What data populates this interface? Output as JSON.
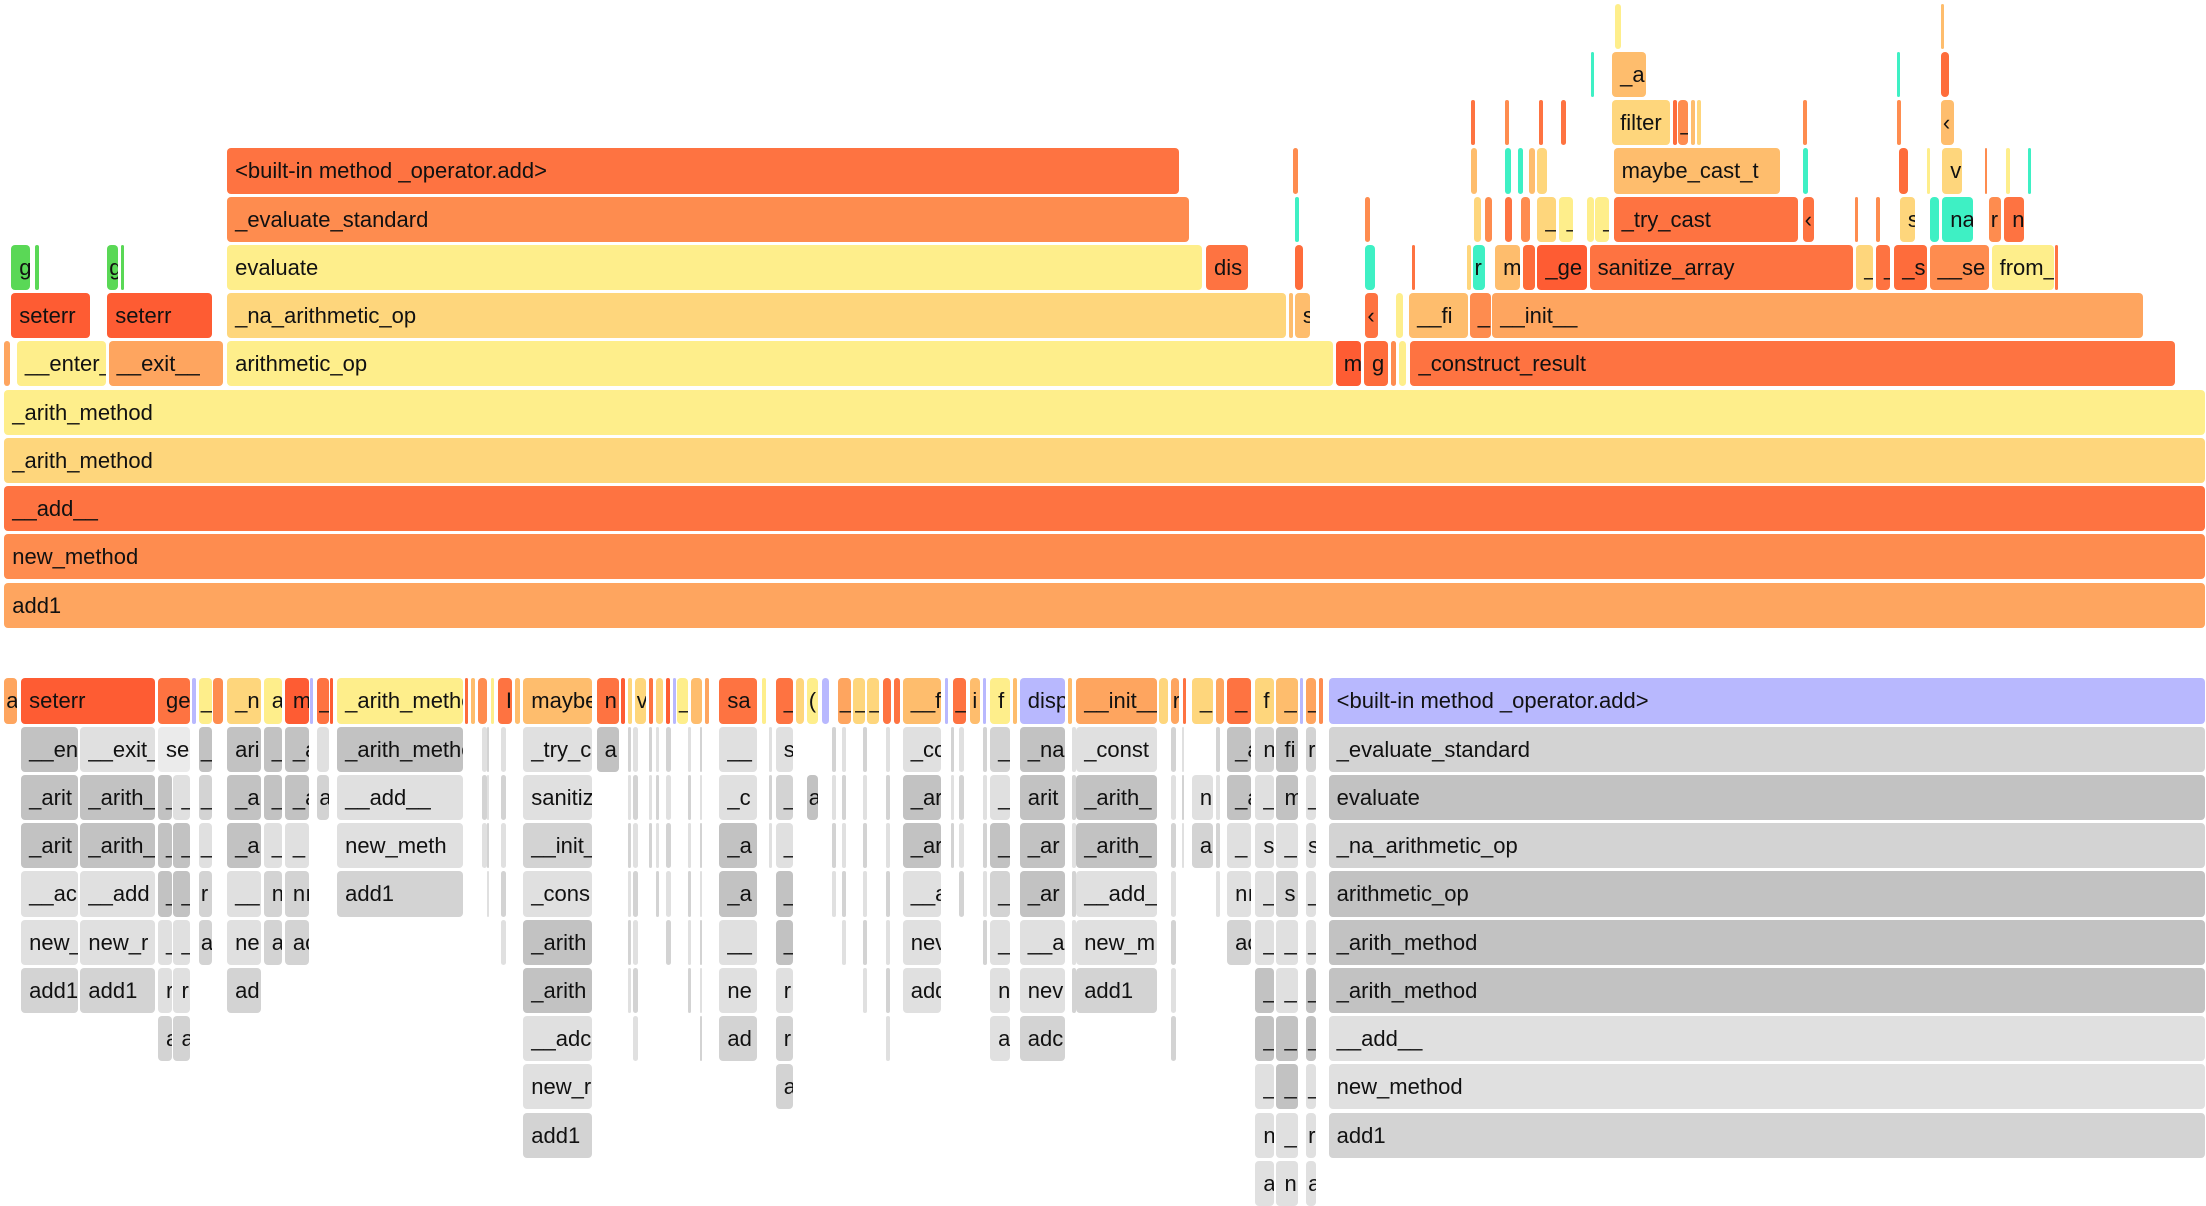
{
  "palette": {
    "Y1": "#feee8b",
    "Y2": "#fed67c",
    "O1": "#fea55f",
    "O2": "#fe8c4f",
    "O3": "#fe7341",
    "R": "#fe5c33",
    "R2": "#fe6c3b",
    "P": "#febd6d",
    "G": "#5ad856",
    "C": "#3ef0c4",
    "L": "#b8b8fe",
    "g1": "#e0e0e0",
    "g2": "#d3d3d3",
    "g3": "#c2c2c2",
    "g4": "#ebebeb"
  },
  "top_graph": {
    "labels": [
      "add1",
      "new_method",
      "__add__",
      "_arith_method",
      "_arith_method",
      "__enter__",
      "__exit__",
      "arithmetic_op",
      "m",
      "g",
      "_construct_result",
      "seterr",
      "seterr",
      "_na_arithmetic_op",
      "s",
      "‹",
      "__fi",
      "_",
      "__init__",
      "g",
      "g",
      "evaluate",
      "dis",
      "r",
      "m",
      "_ge",
      "sanitize_array",
      "_",
      "_",
      "_s",
      "__se",
      "from_",
      "_evaluate_standard",
      "_",
      "_",
      "_",
      "_try_cast",
      "‹",
      "s",
      "na",
      "r",
      "n",
      "<built-in method _operator.add>",
      "maybe_cast_t",
      "v",
      "filter",
      "_",
      "‹",
      "_a"
    ]
  },
  "bottom_graph": {
    "labels": [
      "a",
      "seterr",
      "ge",
      "_",
      "_n",
      "a",
      "m",
      "_",
      "_arith_method",
      "I",
      "maybe",
      "n",
      "v",
      "_",
      "sa",
      "_",
      "(",
      "_",
      "_",
      "_",
      "__f",
      "_",
      "i",
      "f",
      "disp",
      "__init__",
      "r",
      "_",
      "_",
      "f",
      "_",
      "_",
      "<built-in method _operator.add>",
      "__enter__",
      "__exit__",
      "se",
      "_",
      "ari",
      "_",
      "_a",
      "_arith_method",
      "_try_c",
      "a",
      "__",
      "s",
      "_co",
      "_",
      "_na",
      "_const",
      "_a",
      "n",
      "fi",
      "r",
      "_evaluate_standard",
      "_arit",
      "_arith_",
      "_",
      "_",
      "_",
      "_a",
      "_",
      "_a",
      "a",
      "__add__",
      "sanitiz",
      "_c",
      "_",
      "a",
      "_ar",
      "_",
      "arit",
      "_arith_",
      "n",
      "_a",
      "_",
      "m",
      "_",
      "evaluate",
      "_arit",
      "_arith_",
      "_",
      "_",
      "_",
      "_a",
      "_",
      "_",
      "new_meth",
      "__init_",
      "_a",
      "_",
      "_ar",
      "_",
      "_ar",
      "_arith_",
      "a",
      "_",
      "s",
      "_",
      "s",
      "_na_arithmetic_op",
      "__ac",
      "__add",
      "_",
      "_",
      "r",
      "__",
      "n",
      "nı",
      "add1",
      "_cons",
      "_a",
      "_",
      "__a",
      "_",
      "_ar",
      "__add_",
      "nı",
      "_",
      "s",
      "_",
      "arithmetic_op",
      "new_",
      "new_r",
      "_",
      "_",
      "a",
      "ne",
      "a",
      "ac",
      "_arith",
      "__",
      "_",
      "nev",
      "_",
      "__a",
      "new_m",
      "ac",
      "_",
      "_",
      "_",
      "_arith_method",
      "add1",
      "add1",
      "r",
      "r",
      "ad",
      "_arith",
      "ne",
      "r",
      "add",
      "n",
      "nev",
      "add1",
      "_",
      "_",
      "_",
      "_arith_method",
      "a",
      "a",
      "__adc",
      "ad",
      "r",
      "a",
      "adc",
      "_",
      "_",
      "_",
      "__add__",
      "new_r",
      "a",
      "_",
      "_",
      "_",
      "new_method",
      "add1",
      "n",
      "_",
      "r",
      "add1",
      "a",
      "n",
      "a"
    ]
  }
}
